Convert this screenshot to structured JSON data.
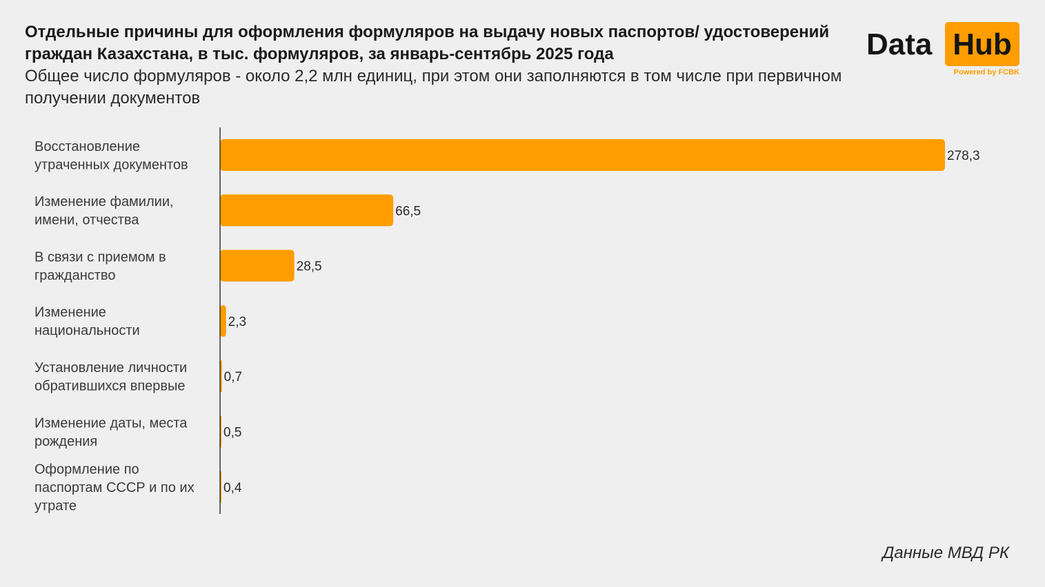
{
  "header": {
    "title": "Отдельные причины для оформления формуляров на выдачу новых паспортов/ удостоверений граждан Казахстана, в тыс. формуляров, за январь-сентябрь 2025 года",
    "subtitle": "Общее число формуляров - около 2,2 млн единиц, при этом они заполняются в том числе при первичном получении документов"
  },
  "logo": {
    "text_left": "Data",
    "text_right": "Hub",
    "tagline": "Powered by FCBK",
    "accent_color": "#ff9d00"
  },
  "source": "Данные МВД РК",
  "chart_data": {
    "type": "bar",
    "orientation": "horizontal",
    "categories": [
      [
        "Восстановление",
        "утраченных документов"
      ],
      [
        "Изменение фамилии,",
        "имени, отчества"
      ],
      [
        "В связи с приемом в",
        "гражданство"
      ],
      [
        "Изменение",
        "национальности"
      ],
      [
        "Установление личности",
        "обратившихся впервые"
      ],
      [
        "Изменение даты, места",
        "рождения"
      ],
      [
        "Оформление по",
        "паспортам СССР и по их",
        "утрате"
      ]
    ],
    "values": [
      278.3,
      66.5,
      28.5,
      2.3,
      0.7,
      0.5,
      0.4
    ],
    "value_labels": [
      "278,3",
      "66,5",
      "28,5",
      "2,3",
      "0,7",
      "0,5",
      "0,4"
    ],
    "xlim": [
      0,
      278.3
    ],
    "bar_color": "#ff9d00",
    "grid": false,
    "legend": "none"
  }
}
